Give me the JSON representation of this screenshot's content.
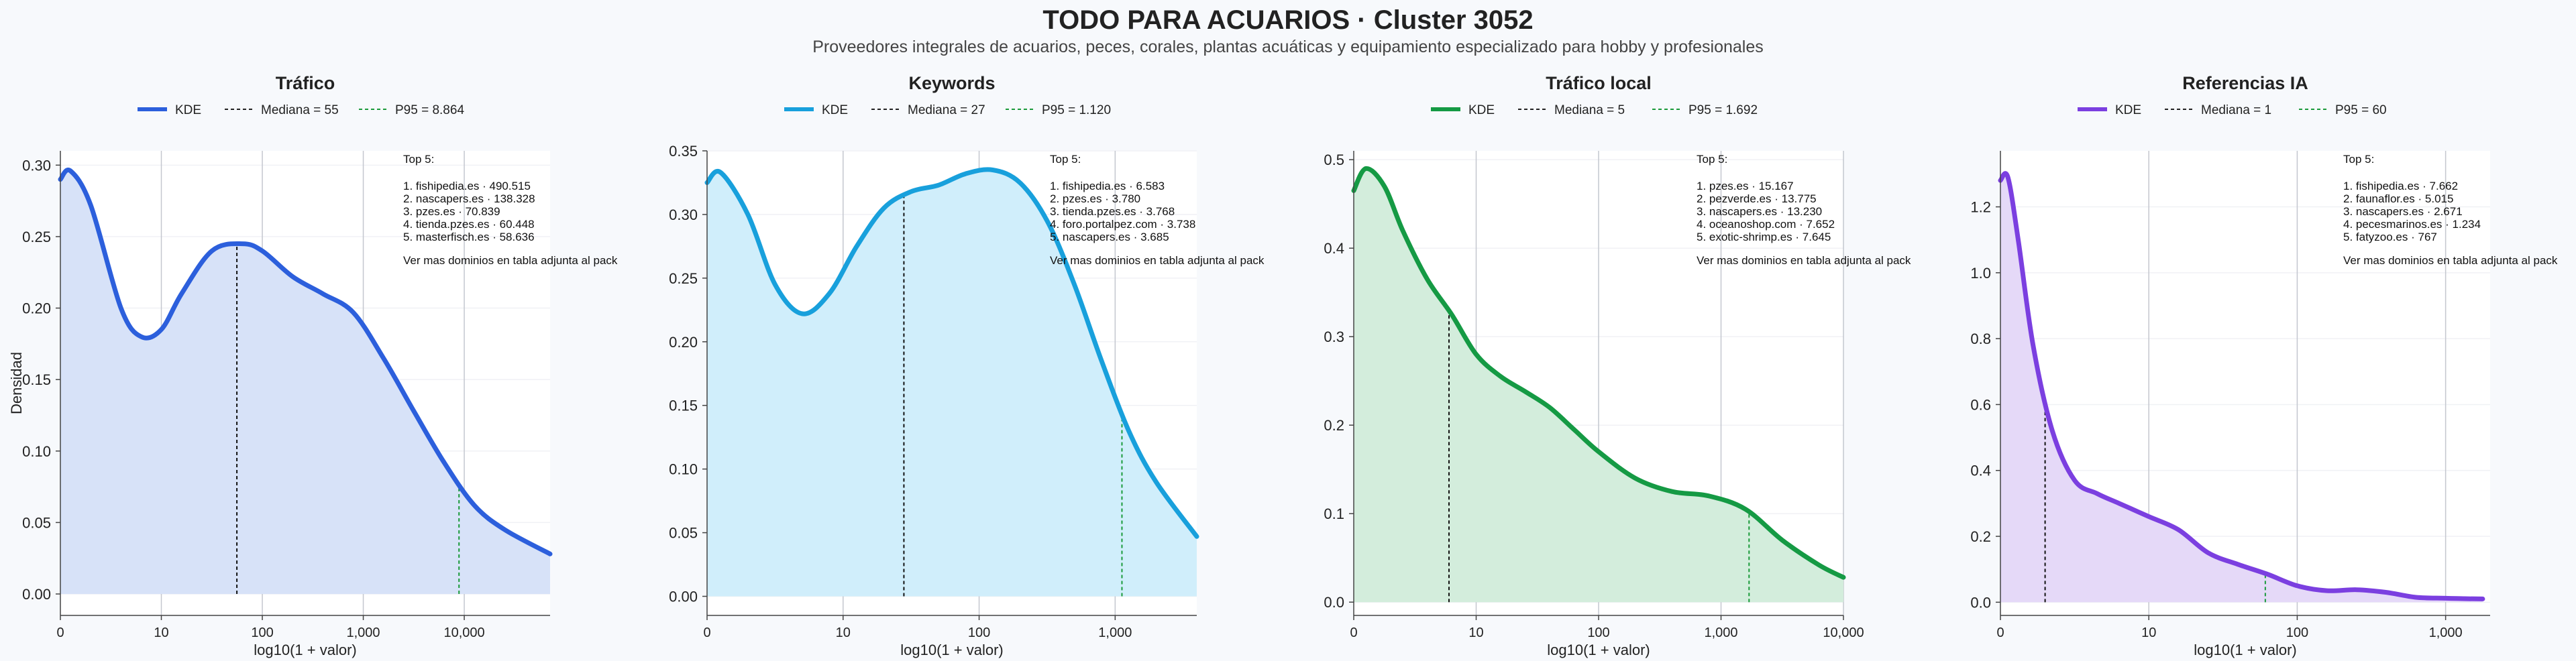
{
  "header": {
    "title": "TODO PARA ACUARIOS · Cluster 3052",
    "subtitle": "Proveedores integrales de acuarios, peces, corales, plantas acuáticas y equipamiento especializado para hobby y profesionales"
  },
  "shared": {
    "xlabel": "log10(1 + valor)",
    "ylabel": "Densidad",
    "legend_kde": "KDE",
    "top_heading": "Top 5:",
    "top_footer": "Ver mas dominios en tabla adjunta al pack"
  },
  "chart_data": [
    {
      "type": "area",
      "title": "Tráfico",
      "color": "#2c5fdc",
      "fill": "#d7e2f8",
      "legend": {
        "kde": "KDE",
        "median": "Mediana = 55",
        "p95": "P95 = 8.864"
      },
      "median_x": 1.748,
      "p95_x": 3.948,
      "xlim": [
        0,
        4.85
      ],
      "ylim": [
        -0.015,
        0.31
      ],
      "xticks": [
        {
          "v": 0,
          "l": "0"
        },
        {
          "v": 1,
          "l": "10"
        },
        {
          "v": 2,
          "l": "100"
        },
        {
          "v": 3,
          "l": "1,000"
        },
        {
          "v": 4,
          "l": "10,000"
        }
      ],
      "yticks": [
        0.0,
        0.05,
        0.1,
        0.15,
        0.2,
        0.25,
        0.3
      ],
      "ytick_labels": [
        "0.00",
        "0.05",
        "0.10",
        "0.15",
        "0.20",
        "0.25",
        "0.30"
      ],
      "x": [
        0,
        0.1,
        0.3,
        0.6,
        0.8,
        1.0,
        1.2,
        1.5,
        1.8,
        2.0,
        2.3,
        2.6,
        2.9,
        3.2,
        3.5,
        3.8,
        4.1,
        4.4,
        4.85
      ],
      "y": [
        0.29,
        0.296,
        0.272,
        0.2,
        0.18,
        0.185,
        0.21,
        0.24,
        0.245,
        0.24,
        0.222,
        0.21,
        0.197,
        0.165,
        0.128,
        0.092,
        0.062,
        0.045,
        0.028
      ],
      "top5": [
        "1. fishipedia.es · 490.515",
        "2. nascapers.es · 138.328",
        "3. pzes.es · 70.839",
        "4. tienda.pzes.es · 60.448",
        "5. masterfisch.es · 58.636"
      ]
    },
    {
      "type": "area",
      "title": "Keywords",
      "color": "#18a0dc",
      "fill": "#d0eefb",
      "legend": {
        "kde": "KDE",
        "median": "Mediana = 27",
        "p95": "P95 = 1.120"
      },
      "median_x": 1.447,
      "p95_x": 3.05,
      "xlim": [
        0,
        3.6
      ],
      "ylim": [
        -0.015,
        0.35
      ],
      "xticks": [
        {
          "v": 0,
          "l": "0"
        },
        {
          "v": 1,
          "l": "10"
        },
        {
          "v": 2,
          "l": "100"
        },
        {
          "v": 3,
          "l": "1,000"
        }
      ],
      "yticks": [
        0.0,
        0.05,
        0.1,
        0.15,
        0.2,
        0.25,
        0.3,
        0.35
      ],
      "ytick_labels": [
        "0.00",
        "0.05",
        "0.10",
        "0.15",
        "0.20",
        "0.25",
        "0.30",
        "0.35"
      ],
      "x": [
        0,
        0.1,
        0.3,
        0.5,
        0.7,
        0.9,
        1.1,
        1.3,
        1.5,
        1.7,
        1.9,
        2.1,
        2.3,
        2.5,
        2.7,
        2.9,
        3.1,
        3.3,
        3.6
      ],
      "y": [
        0.325,
        0.333,
        0.3,
        0.245,
        0.222,
        0.238,
        0.275,
        0.305,
        0.318,
        0.323,
        0.332,
        0.335,
        0.325,
        0.295,
        0.245,
        0.185,
        0.13,
        0.09,
        0.047
      ],
      "top5": [
        "1. fishipedia.es · 6.583",
        "2. pzes.es · 3.780",
        "3. tienda.pzes.es · 3.768",
        "4. foro.portalpez.com · 3.738",
        "5. nascapers.es · 3.685"
      ]
    },
    {
      "type": "area",
      "title": "Tráfico local",
      "color": "#159a44",
      "fill": "#d3eddc",
      "legend": {
        "kde": "KDE",
        "median": "Mediana = 5",
        "p95": "P95 = 1.692"
      },
      "median_x": 0.778,
      "p95_x": 3.229,
      "xlim": [
        0,
        4.0
      ],
      "ylim": [
        -0.015,
        0.51
      ],
      "xticks": [
        {
          "v": 0,
          "l": "0"
        },
        {
          "v": 1,
          "l": "10"
        },
        {
          "v": 2,
          "l": "100"
        },
        {
          "v": 3,
          "l": "1,000"
        },
        {
          "v": 4,
          "l": "10,000"
        }
      ],
      "yticks": [
        0.0,
        0.1,
        0.2,
        0.3,
        0.4,
        0.5
      ],
      "ytick_labels": [
        "0.0",
        "0.1",
        "0.2",
        "0.3",
        "0.4",
        "0.5"
      ],
      "x": [
        0,
        0.1,
        0.25,
        0.4,
        0.6,
        0.8,
        1.0,
        1.2,
        1.4,
        1.6,
        1.8,
        2.0,
        2.3,
        2.6,
        2.9,
        3.2,
        3.5,
        3.8,
        4.0
      ],
      "y": [
        0.465,
        0.49,
        0.47,
        0.42,
        0.365,
        0.325,
        0.28,
        0.255,
        0.238,
        0.22,
        0.195,
        0.17,
        0.14,
        0.125,
        0.12,
        0.105,
        0.07,
        0.042,
        0.028
      ],
      "top5": [
        "1. pzes.es · 15.167",
        "2. pezverde.es · 13.775",
        "3. nascapers.es · 13.230",
        "4. oceanoshop.com · 7.652",
        "5. exotic-shrimp.es · 7.645"
      ]
    },
    {
      "type": "area",
      "title": "Referencias IA",
      "color": "#7b3fe0",
      "fill": "#e5d9f8",
      "legend": {
        "kde": "KDE",
        "median": "Mediana = 1",
        "p95": "P95 = 60"
      },
      "median_x": 0.301,
      "p95_x": 1.785,
      "xlim": [
        0,
        3.3
      ],
      "ylim": [
        -0.04,
        1.37
      ],
      "xticks": [
        {
          "v": 0,
          "l": "0"
        },
        {
          "v": 1,
          "l": "10"
        },
        {
          "v": 2,
          "l": "100"
        },
        {
          "v": 3,
          "l": "1,000"
        }
      ],
      "yticks": [
        0.0,
        0.2,
        0.4,
        0.6,
        0.8,
        1.0,
        1.2
      ],
      "ytick_labels": [
        "0.0",
        "0.2",
        "0.4",
        "0.6",
        "0.8",
        "1.0",
        "1.2"
      ],
      "x": [
        0,
        0.05,
        0.12,
        0.22,
        0.35,
        0.5,
        0.65,
        0.8,
        1.0,
        1.2,
        1.4,
        1.6,
        1.8,
        2.0,
        2.2,
        2.4,
        2.6,
        2.8,
        3.0,
        3.25
      ],
      "y": [
        1.28,
        1.29,
        1.1,
        0.78,
        0.52,
        0.37,
        0.33,
        0.3,
        0.26,
        0.22,
        0.15,
        0.115,
        0.085,
        0.05,
        0.035,
        0.038,
        0.03,
        0.015,
        0.012,
        0.01
      ],
      "top5": [
        "1. fishipedia.es · 7.662",
        "2. faunaflor.es · 5.015",
        "3. nascapers.es · 2.671",
        "4. pecesmarinos.es · 1.234",
        "5. fatyzoo.es · 767"
      ]
    }
  ]
}
